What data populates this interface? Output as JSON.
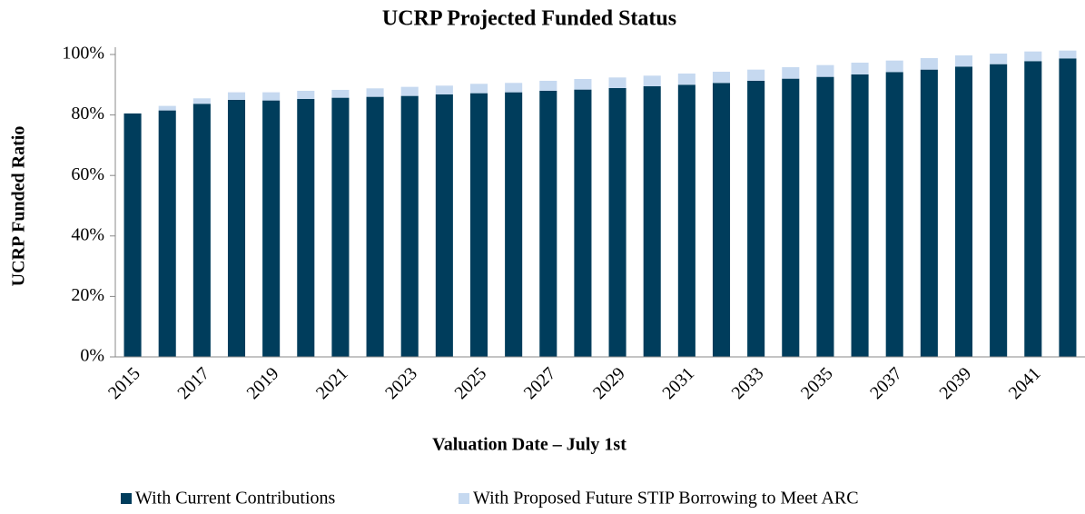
{
  "chart_data": {
    "type": "stacked_bar",
    "title": "UCRP Projected Funded Status",
    "x_label": "Valuation Date – July 1st",
    "y_label": "UCRP  Funded Ratio",
    "categories": [
      "2015",
      null,
      "2017",
      null,
      "2019",
      null,
      "2021",
      null,
      "2023",
      null,
      "2025",
      null,
      "2027",
      null,
      "2029",
      null,
      "2031",
      null,
      "2033",
      null,
      "2035",
      null,
      "2037",
      null,
      "2039",
      null,
      "2041",
      null
    ],
    "series": [
      {
        "name": "With Current Contributions",
        "color": "#003d5c",
        "values": [
          80.5,
          81.5,
          83.7,
          85,
          84.8,
          85.3,
          85.7,
          86,
          86.3,
          86.8,
          87.2,
          87.5,
          88,
          88.4,
          88.9,
          89.5,
          90,
          90.6,
          91.3,
          92,
          92.6,
          93.4,
          94.2,
          95,
          96,
          96.8,
          97.8,
          98.7
        ]
      },
      {
        "name": "With Proposed Future STIP Borrowing to Meet ARC",
        "color": "#c6d9f0",
        "values": [
          0,
          1.5,
          1.8,
          2.5,
          2.7,
          2.7,
          2.6,
          2.8,
          3.0,
          2.9,
          3.1,
          3.1,
          3.3,
          3.5,
          3.5,
          3.5,
          3.7,
          3.7,
          3.7,
          3.8,
          3.9,
          3.9,
          3.8,
          3.8,
          3.7,
          3.5,
          3.2,
          2.6
        ]
      }
    ],
    "ylim": [
      0,
      100
    ],
    "yticks": [
      {
        "value": 0,
        "label": "0%"
      },
      {
        "value": 20,
        "label": "20%"
      },
      {
        "value": 40,
        "label": "40%"
      },
      {
        "value": 60,
        "label": "60%"
      },
      {
        "value": 80,
        "label": "80%"
      },
      {
        "value": 100,
        "label": "100%"
      }
    ],
    "grid": false,
    "legend": "bottom"
  }
}
